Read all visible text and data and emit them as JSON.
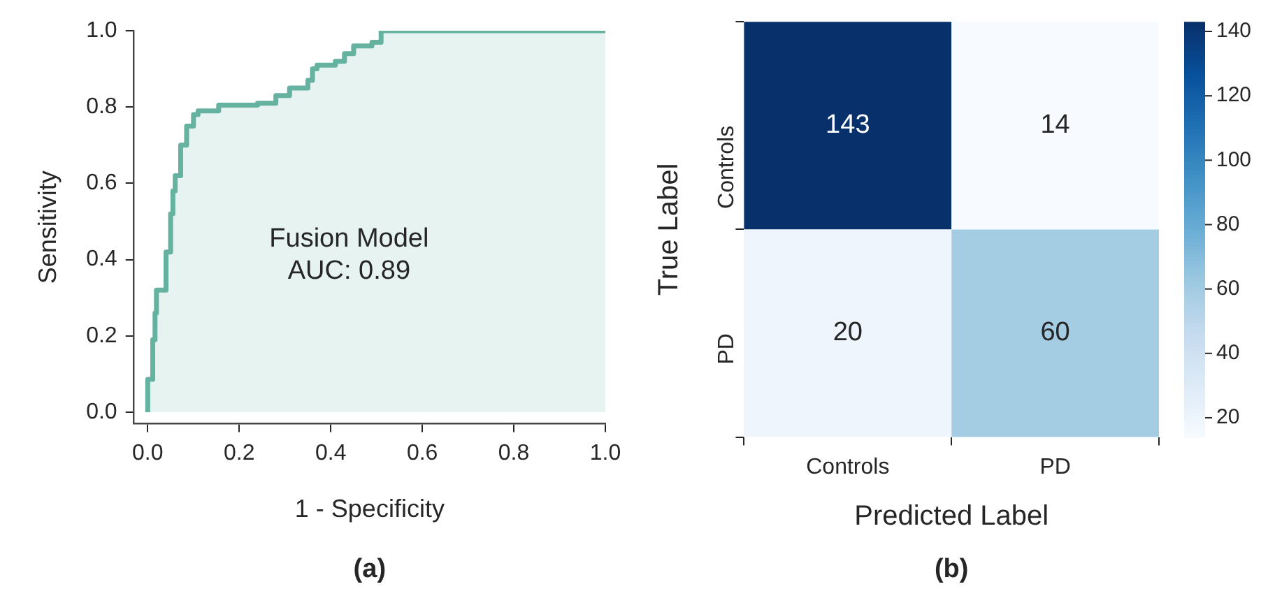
{
  "chart_data": [
    {
      "type": "step",
      "xlabel": "1 - Specificity",
      "ylabel": "Sensitivity",
      "x": [
        0,
        0.011,
        0.016,
        0.019,
        0.04,
        0.05,
        0.055,
        0.06,
        0.072,
        0.085,
        0.1,
        0.11,
        0.155,
        0.24,
        0.28,
        0.31,
        0.35,
        0.36,
        0.37,
        0.41,
        0.43,
        0.45,
        0.49,
        0.51,
        1.0
      ],
      "series": [
        {
          "color": "#66b2a0",
          "values": [
            0,
            0.086,
            0.19,
            0.26,
            0.32,
            0.42,
            0.52,
            0.58,
            0.62,
            0.7,
            0.75,
            0.78,
            0.79,
            0.805,
            0.81,
            0.83,
            0.85,
            0.87,
            0.9,
            0.91,
            0.92,
            0.94,
            0.96,
            0.97,
            1.0
          ]
        }
      ],
      "xlim": [
        -0.03,
        1.0
      ],
      "xticks": [
        {
          "value": 0,
          "label": "0.0"
        },
        0.2,
        0.4,
        0.6,
        0.8,
        {
          "value": 1,
          "label": "1.0"
        }
      ],
      "ylim": [
        -0.03,
        1.0
      ],
      "yticks": [
        {
          "value": 0,
          "label": "0.0"
        },
        0.2,
        0.4,
        0.6,
        0.8,
        {
          "value": 1,
          "label": "1.0"
        }
      ],
      "grid": false,
      "legend": false,
      "annotations": [
        "Fusion Model\nAUC: 0.89",
        "(a)"
      ]
    },
    {
      "type": "heatmap",
      "xlabel": "Predicted Label",
      "ylabel": "True Label",
      "categories": [
        "Controls",
        "PD"
      ],
      "y_categories": [
        "Controls",
        "PD"
      ],
      "cells": [
        [
          143,
          14
        ],
        [
          20,
          60
        ]
      ],
      "clim": [
        14,
        143
      ],
      "cticks": [
        20,
        40,
        60,
        80,
        100,
        120,
        140
      ],
      "data_labels": true,
      "legend": false,
      "annotations": [
        "(b)"
      ]
    }
  ]
}
